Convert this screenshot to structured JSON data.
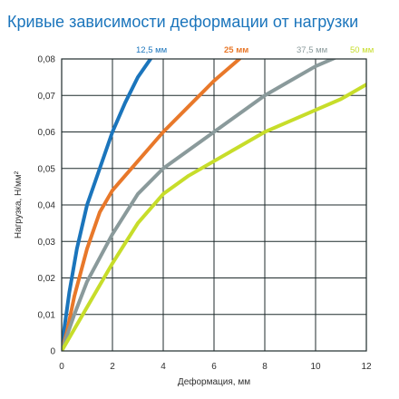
{
  "chart_data": {
    "type": "line",
    "title": "Кривые зависимости деформации от нагрузки",
    "xlabel": "Деформация, мм",
    "ylabel": "Нагрузка, Н/мм²",
    "xlim": [
      0,
      12
    ],
    "ylim": [
      0,
      0.08
    ],
    "x_ticks": [
      "0",
      "2",
      "4",
      "6",
      "8",
      "10",
      "12"
    ],
    "y_ticks": [
      "0",
      "0,01",
      "0,02",
      "0,03",
      "0,04",
      "0,05",
      "0,06",
      "0,07",
      "0,08"
    ],
    "grid": true,
    "legend_placement": "top, at curve ends",
    "series": [
      {
        "name": "12,5 мм",
        "color": "#1b75bc",
        "x": [
          0,
          0.1,
          0.3,
          0.6,
          1.0,
          1.5,
          2.0,
          2.5,
          3.0,
          3.5
        ],
        "y": [
          0,
          0.006,
          0.016,
          0.028,
          0.04,
          0.05,
          0.06,
          0.068,
          0.075,
          0.08
        ]
      },
      {
        "name": "25 мм",
        "color": "#e8782a",
        "x": [
          0,
          0.2,
          0.5,
          1.0,
          1.5,
          2.0,
          3.0,
          4.0,
          5.0,
          6.0,
          7.0
        ],
        "y": [
          0,
          0.005,
          0.015,
          0.028,
          0.038,
          0.044,
          0.052,
          0.06,
          0.067,
          0.074,
          0.08
        ]
      },
      {
        "name": "37,5 мм",
        "color": "#8a9a9b",
        "x": [
          0,
          0.5,
          1.0,
          2.0,
          3.0,
          4.0,
          5.0,
          6.0,
          7.0,
          8.0,
          9.0,
          10.0,
          11.0
        ],
        "y": [
          0,
          0.01,
          0.019,
          0.032,
          0.043,
          0.05,
          0.055,
          0.06,
          0.065,
          0.07,
          0.074,
          0.078,
          0.081
        ]
      },
      {
        "name": "50 мм",
        "color": "#c7dd2a",
        "x": [
          0,
          1.0,
          2.0,
          3.0,
          4.0,
          5.0,
          6.0,
          7.0,
          8.0,
          9.0,
          10.0,
          11.0,
          12.0
        ],
        "y": [
          0,
          0.012,
          0.024,
          0.035,
          0.043,
          0.048,
          0.052,
          0.056,
          0.06,
          0.063,
          0.066,
          0.069,
          0.073
        ]
      }
    ]
  }
}
